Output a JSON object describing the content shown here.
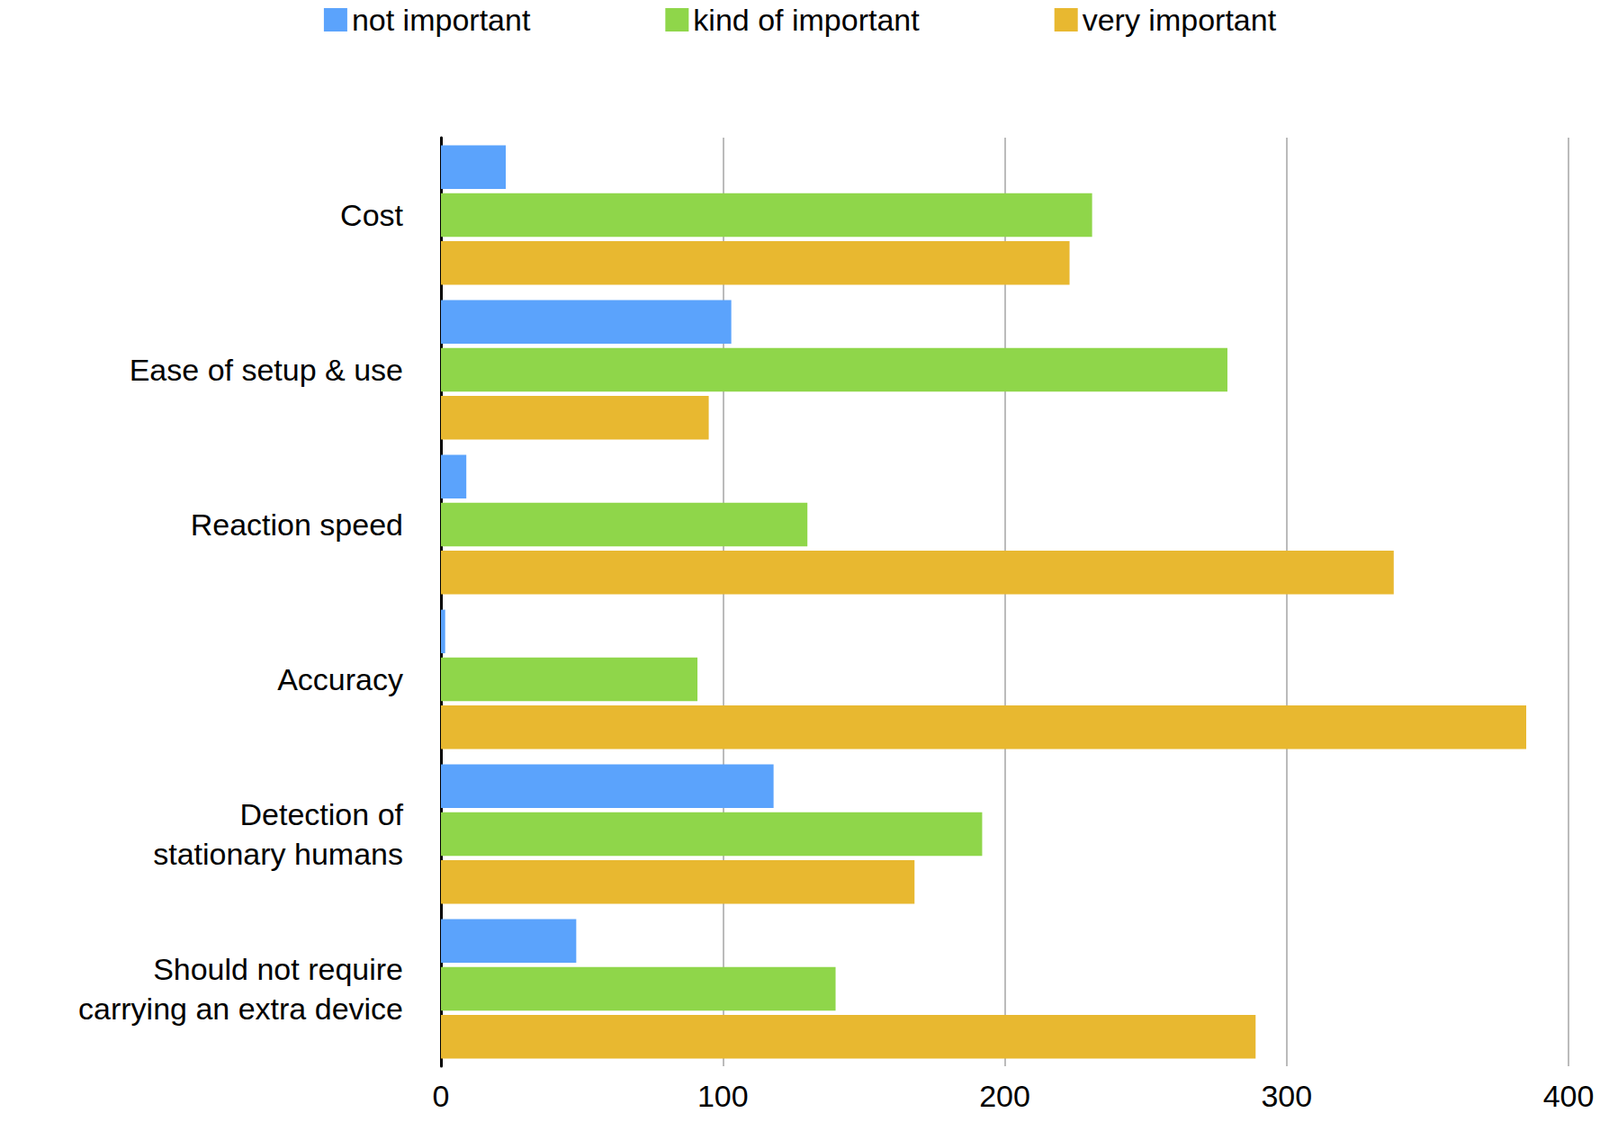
{
  "chart_data": {
    "type": "bar",
    "orientation": "horizontal",
    "categories": [
      "Cost",
      "Ease of setup & use",
      "Reaction speed",
      "Accuracy",
      "Detection of\nstationary humans",
      "Should not require\ncarrying an extra device"
    ],
    "series": [
      {
        "name": "not important",
        "color": "#5ba3fc",
        "values": [
          23,
          103,
          9,
          1.5,
          118,
          48
        ]
      },
      {
        "name": "kind of important",
        "color": "#8fd64a",
        "values": [
          231,
          279,
          130,
          91,
          192,
          140
        ]
      },
      {
        "name": "very important",
        "color": "#e8b830",
        "values": [
          223,
          95,
          338,
          385,
          168,
          289
        ]
      }
    ],
    "xlim": [
      0,
      400
    ],
    "xticks": [
      0,
      100,
      200,
      300,
      400
    ],
    "grid": true,
    "legend": "top"
  }
}
